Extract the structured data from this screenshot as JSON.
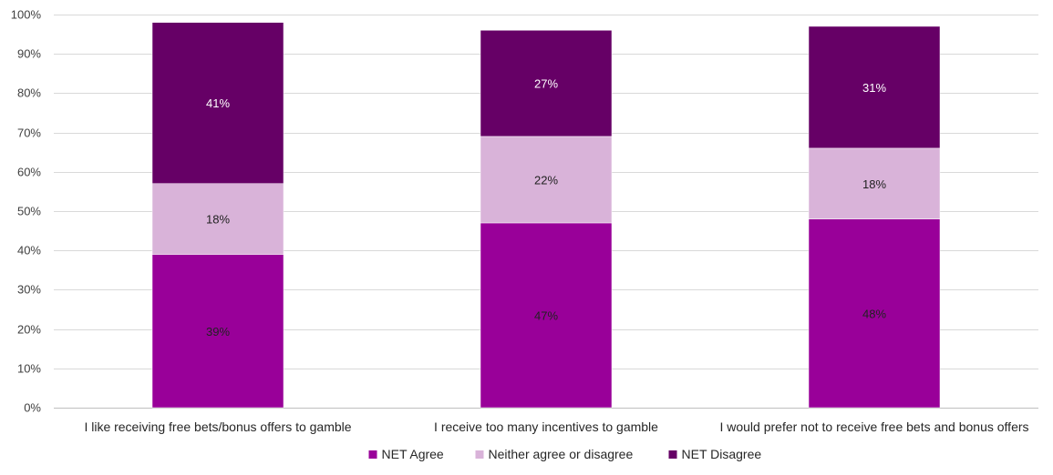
{
  "chart_data": {
    "type": "bar",
    "stacked": true,
    "categories": [
      "I like receiving free bets/bonus offers to gamble",
      "I receive too many incentives to gamble",
      "I would prefer not to receive free bets and bonus offers"
    ],
    "series": [
      {
        "name": "NET Agree",
        "values": [
          39,
          47,
          48
        ],
        "labels": [
          "39%",
          "47%",
          "48%"
        ],
        "color": "#990099",
        "label_color": "#222222"
      },
      {
        "name": "Neither agree or disagree",
        "values": [
          18,
          22,
          18
        ],
        "labels": [
          "18%",
          "22%",
          "18%"
        ],
        "color": "#d9b3d9",
        "label_color": "#222222"
      },
      {
        "name": "NET Disagree",
        "values": [
          41,
          27,
          31
        ],
        "labels": [
          "41%",
          "27%",
          "31%"
        ],
        "color": "#660066",
        "label_color": "#ffffff"
      }
    ],
    "yticks": [
      "0%",
      "10%",
      "20%",
      "30%",
      "40%",
      "50%",
      "60%",
      "70%",
      "80%",
      "90%",
      "100%"
    ],
    "ylim": [
      0,
      100
    ],
    "grid": true,
    "legend_position": "bottom",
    "title": "",
    "xlabel": "",
    "ylabel": ""
  }
}
